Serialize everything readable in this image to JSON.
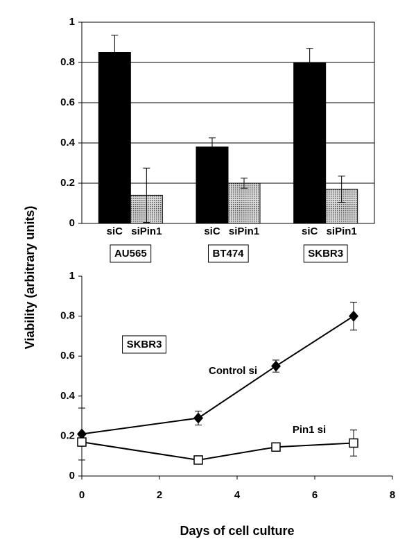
{
  "chart_data": [
    {
      "type": "bar",
      "ylabel": "Viability (arbitrary units)",
      "categories": [
        "AU565",
        "BT474",
        "SKBR3"
      ],
      "category_boxed": true,
      "series": [
        {
          "name": "siC",
          "color": "#000000",
          "values": [
            0.85,
            0.38,
            0.8
          ],
          "errors": [
            0.085,
            0.045,
            0.07
          ]
        },
        {
          "name": "siPin1",
          "color": "#b4b4b4",
          "values": [
            0.14,
            0.2,
            0.17
          ],
          "errors": [
            0.135,
            0.025,
            0.065
          ]
        }
      ],
      "ylim": [
        0,
        1
      ],
      "yticks": [
        0,
        0.2,
        0.4,
        0.6,
        0.8,
        1
      ],
      "grid": true,
      "frame": true
    },
    {
      "type": "line",
      "xlabel": "Days of cell culture",
      "series": [
        {
          "name": "Control si",
          "color": "#000000",
          "marker": "diamond",
          "x": [
            0,
            3,
            5,
            7
          ],
          "values": [
            0.21,
            0.29,
            0.55,
            0.8
          ],
          "errors": [
            0.13,
            0.035,
            0.03,
            0.07
          ]
        },
        {
          "name": "Pin1 si",
          "color": "#000000",
          "marker": "square",
          "x": [
            0,
            3,
            5,
            7
          ],
          "values": [
            0.17,
            0.08,
            0.145,
            0.165
          ],
          "errors": [
            0.01,
            0.01,
            0.01,
            0.065
          ]
        }
      ],
      "annotations": [
        {
          "text": "SKBR3",
          "boxed": true
        }
      ],
      "xlim": [
        0,
        8
      ],
      "xticks": [
        0,
        2,
        4,
        6,
        8
      ],
      "ylim": [
        0,
        1
      ],
      "yticks": [
        0,
        0.2,
        0.4,
        0.6,
        0.8,
        1
      ],
      "grid": false
    }
  ]
}
